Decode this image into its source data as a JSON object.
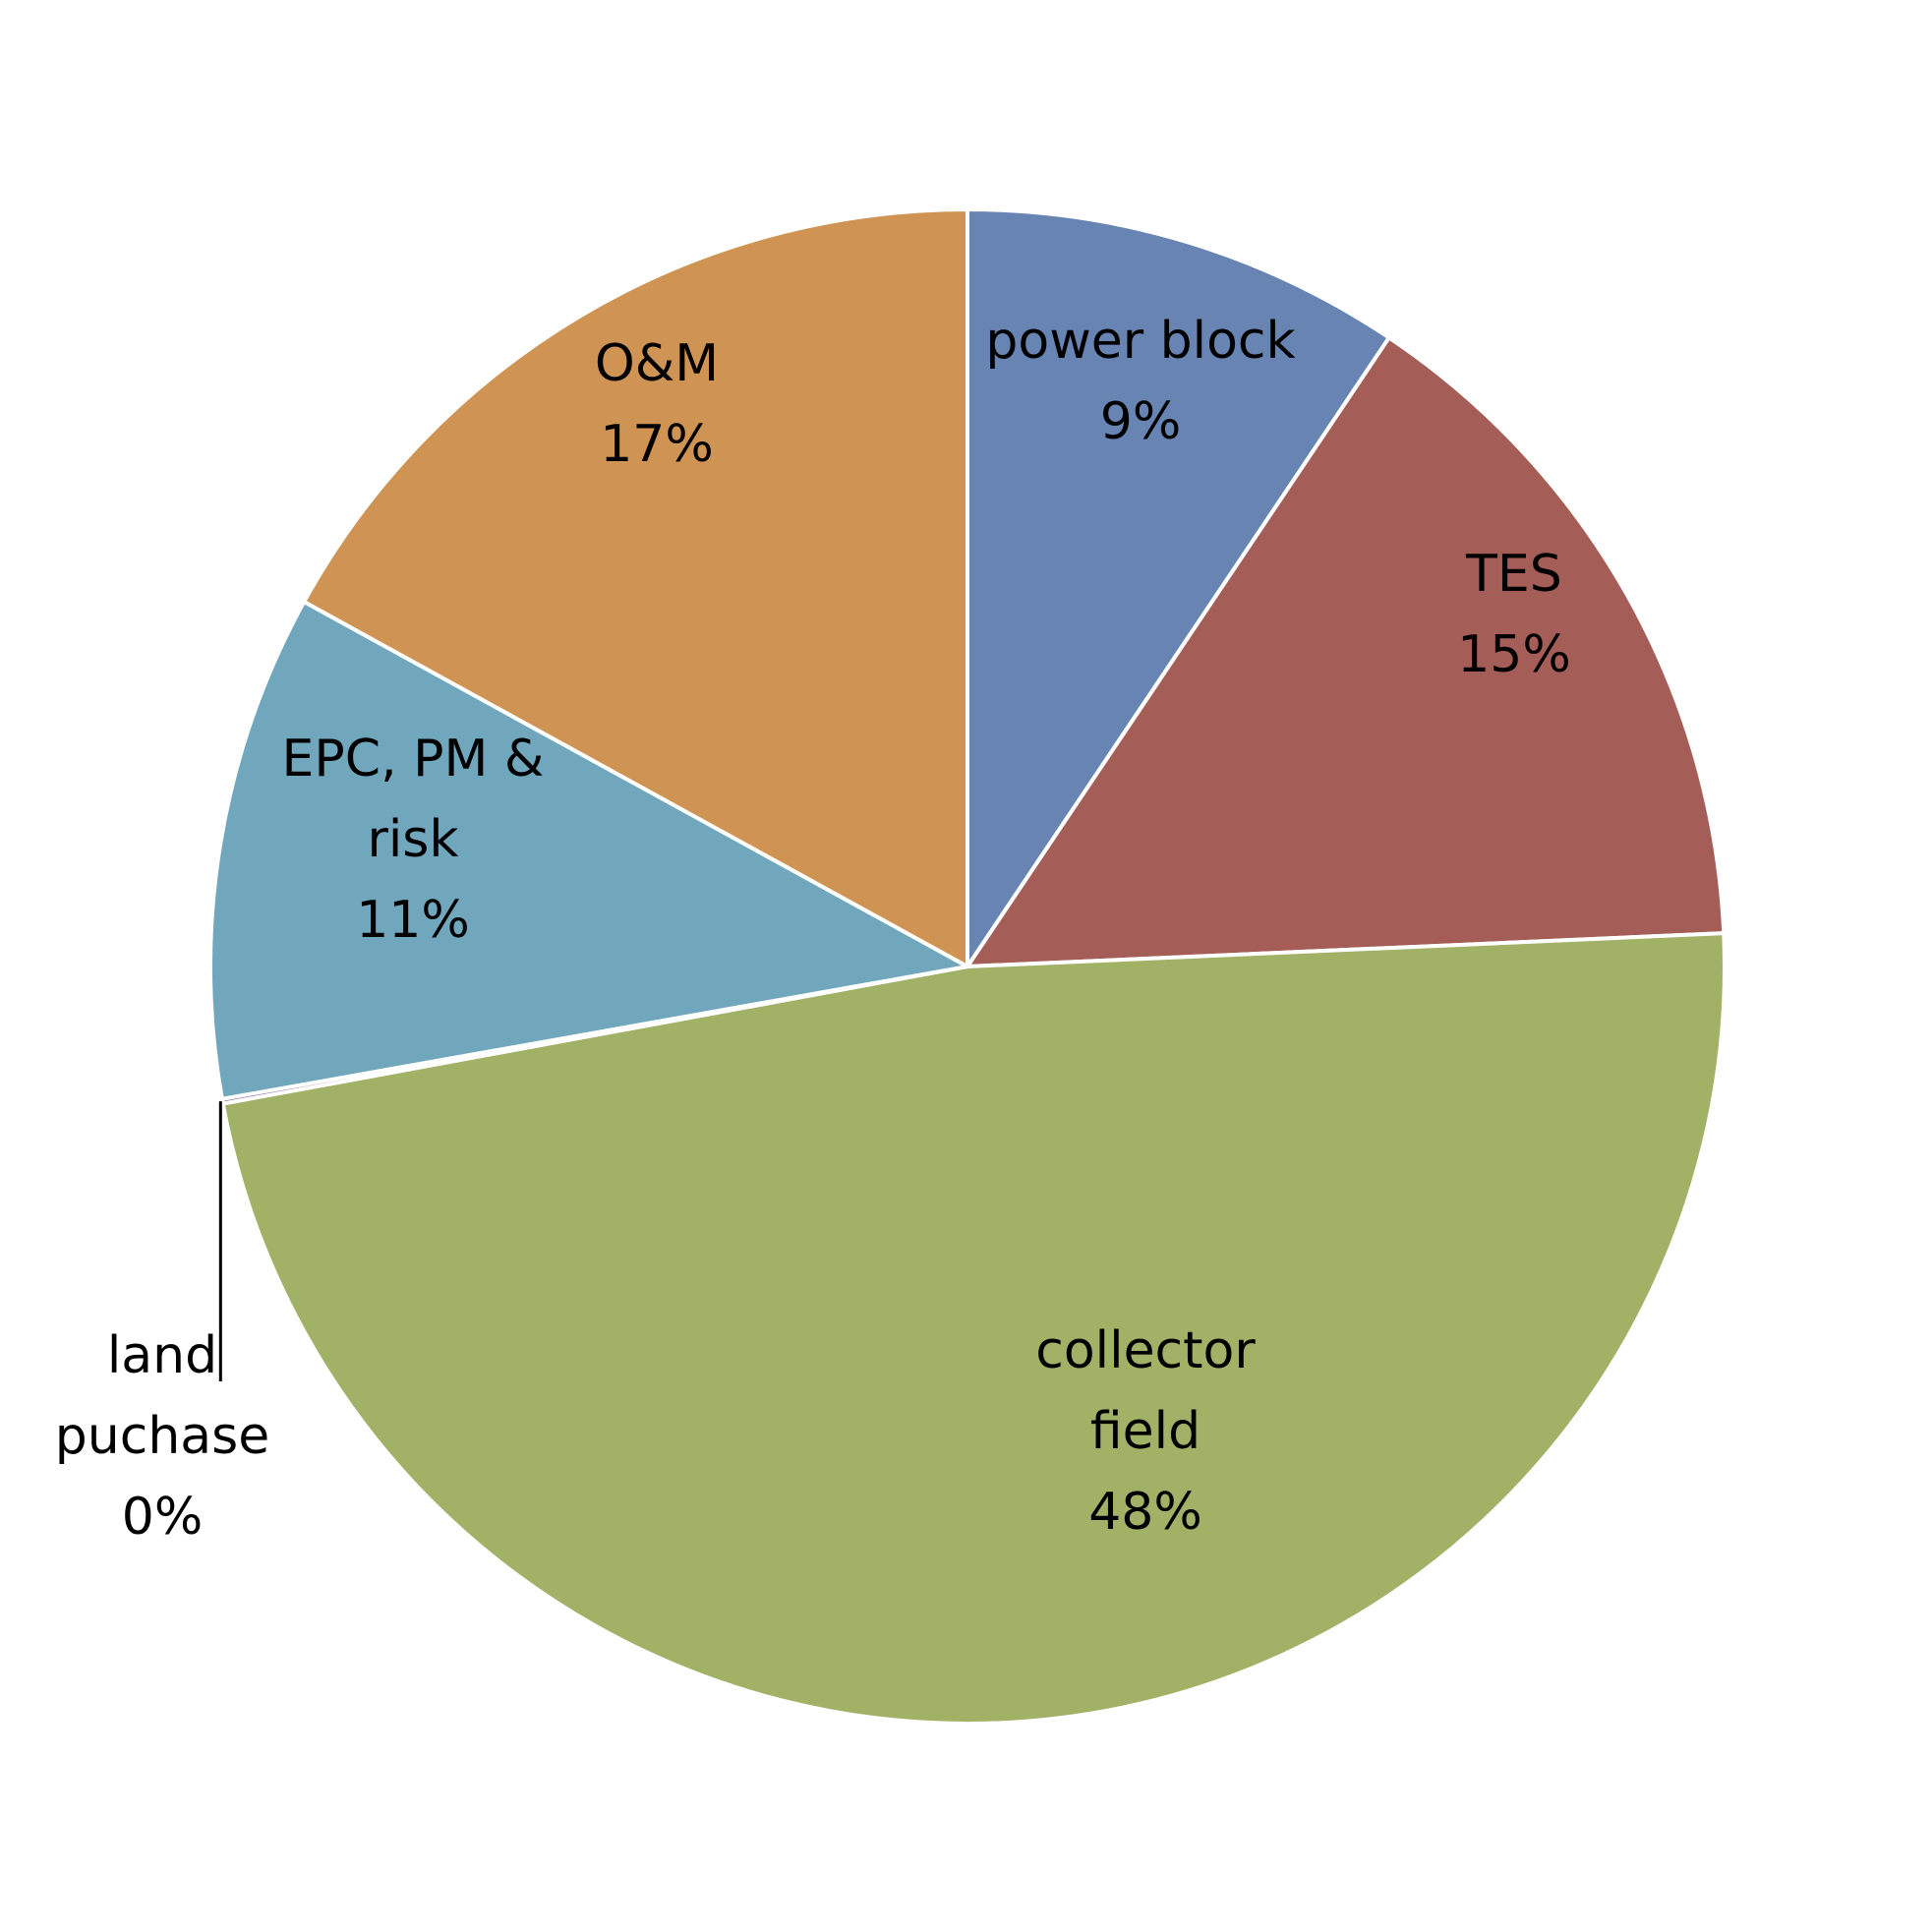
{
  "chart_data": {
    "type": "pie",
    "title": "",
    "start_angle_deg": 0,
    "direction": "clockwise",
    "slices": [
      {
        "name": "power block",
        "label_lines": [
          "power block"
        ],
        "value_label": "9%",
        "value": 9.4,
        "color": "#6784B3"
      },
      {
        "name": "TES",
        "label_lines": [
          "TES"
        ],
        "value_label": "15%",
        "value": 14.9,
        "color": "#A45D57"
      },
      {
        "name": "collector field",
        "label_lines": [
          "collector",
          "field"
        ],
        "value_label": "48%",
        "value": 47.8,
        "color": "#A1B166"
      },
      {
        "name": "land puchase",
        "label_lines": [
          "land",
          "puchase"
        ],
        "value_label": "0%",
        "value": 0.1,
        "color": "#8566A2"
      },
      {
        "name": "EPC, PM & risk",
        "label_lines": [
          "EPC, PM &",
          "risk"
        ],
        "value_label": "11%",
        "value": 10.8,
        "color": "#71A7BC"
      },
      {
        "name": "O&M",
        "label_lines": [
          "O&M"
        ],
        "value_label": "17%",
        "value": 17.0,
        "color": "#CF9453"
      }
    ]
  }
}
